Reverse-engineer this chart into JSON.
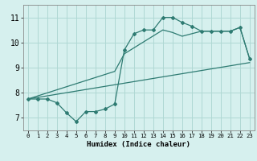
{
  "title": "",
  "xlabel": "Humidex (Indice chaleur)",
  "bg_color": "#d6f0ee",
  "grid_color": "#afd8d4",
  "line_color": "#2e7b72",
  "xlim": [
    -0.5,
    23.5
  ],
  "ylim": [
    6.5,
    11.5
  ],
  "xticks": [
    0,
    1,
    2,
    3,
    4,
    5,
    6,
    7,
    8,
    9,
    10,
    11,
    12,
    13,
    14,
    15,
    16,
    17,
    18,
    19,
    20,
    21,
    22,
    23
  ],
  "yticks": [
    7,
    8,
    9,
    10,
    11
  ],
  "curve1_x": [
    0,
    1,
    2,
    3,
    4,
    5,
    6,
    7,
    8,
    9,
    10,
    11,
    12,
    13,
    14,
    15,
    16,
    17,
    18,
    19,
    20,
    21,
    22,
    23
  ],
  "curve1_y": [
    7.75,
    7.75,
    7.75,
    7.6,
    7.2,
    6.85,
    7.25,
    7.25,
    7.35,
    7.55,
    9.7,
    10.35,
    10.5,
    10.5,
    11.0,
    11.0,
    10.8,
    10.65,
    10.45,
    10.45,
    10.45,
    10.45,
    10.6,
    9.35
  ],
  "curve2_x": [
    0,
    9,
    10,
    14,
    15,
    16,
    18,
    21,
    22,
    23
  ],
  "curve2_y": [
    7.75,
    8.85,
    9.55,
    10.5,
    10.4,
    10.25,
    10.45,
    10.45,
    10.6,
    9.35
  ],
  "line3_x": [
    0,
    23
  ],
  "line3_y": [
    7.75,
    9.2
  ],
  "xlabel_fontsize": 6.5,
  "tick_fontsize_x": 5.2,
  "tick_fontsize_y": 7.0,
  "linewidth": 0.9,
  "markersize": 2.0
}
